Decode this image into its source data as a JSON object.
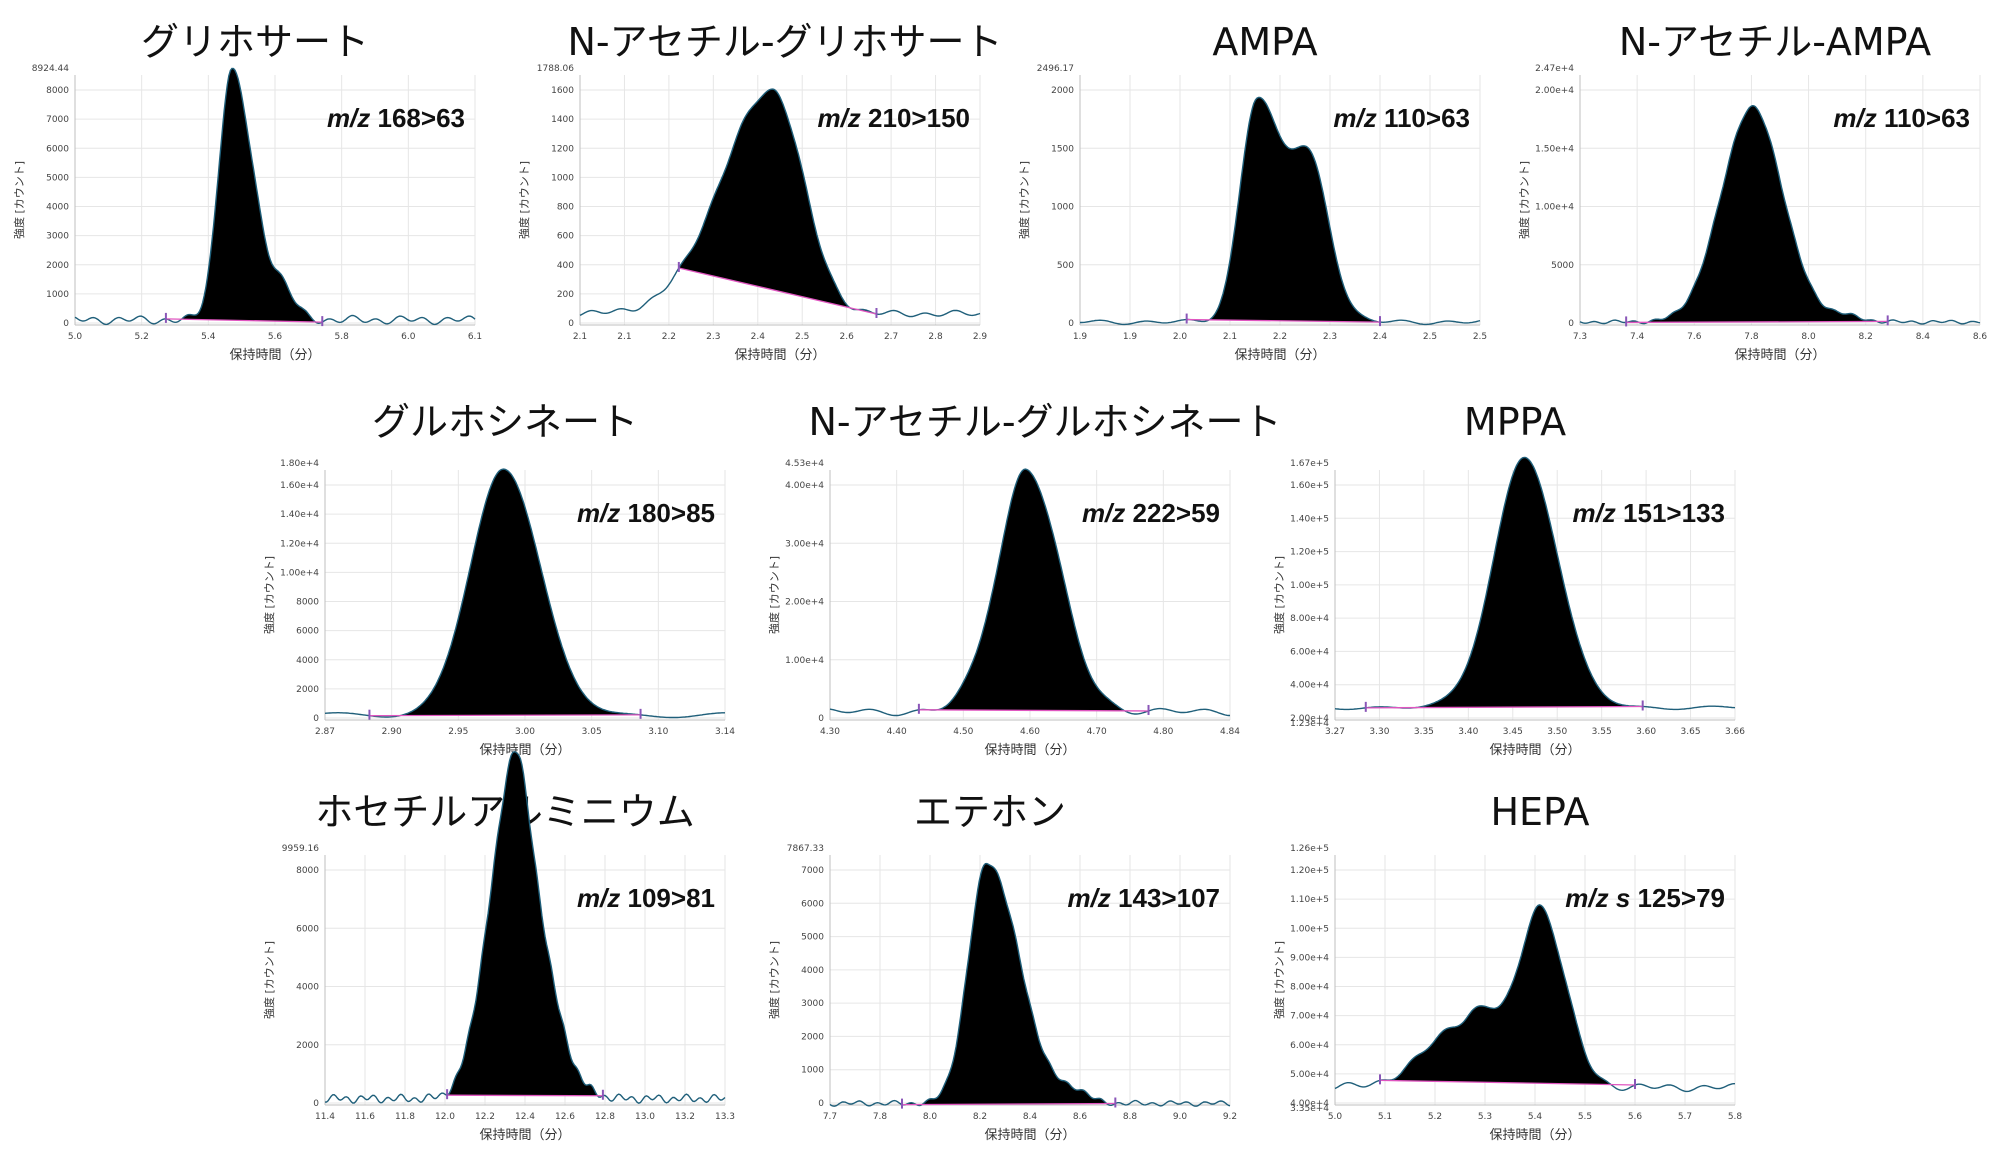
{
  "chart_data": [
    {
      "type": "area",
      "title": "グリホサート",
      "annotation_italic": "m/z",
      "annotation": "168>63",
      "xlabel": "保持時間（分）",
      "ylabel": "強度 [カウント]",
      "x_ticks": [
        "5.0",
        "5.2",
        "5.4",
        "5.6",
        "5.8",
        "6.0",
        "6.1"
      ],
      "y_ticks": [
        "0",
        "1000",
        "2000",
        "3000",
        "4000",
        "5000",
        "6000",
        "7000",
        "8000"
      ],
      "y_max_label": "8924.44",
      "xlim": [
        5.0,
        6.1
      ],
      "ylim": [
        0,
        8924.44
      ],
      "peak": {
        "start": 5.25,
        "end": 5.68,
        "components": [
          {
            "center": 5.43,
            "height": 8900,
            "sl": 0.035,
            "sr": 0.06
          },
          {
            "center": 5.57,
            "height": 900,
            "sl": 0.03,
            "sr": 0.035
          }
        ]
      },
      "baseline": {
        "level": 180,
        "noise": 160
      }
    },
    {
      "type": "area",
      "title": "N-アセチル-グリホサート",
      "annotation_italic": "m/z",
      "annotation": "210>150",
      "xlabel": "保持時間（分）",
      "ylabel": "強度 [カウント]",
      "x_ticks": [
        "2.1",
        "2.1",
        "2.2",
        "2.3",
        "2.4",
        "2.5",
        "2.6",
        "2.7",
        "2.8",
        "2.9"
      ],
      "y_ticks": [
        "0",
        "200",
        "400",
        "600",
        "800",
        "1000",
        "1200",
        "1400",
        "1600"
      ],
      "y_max_label": "1788.06",
      "xlim": [
        2.05,
        2.9
      ],
      "ylim": [
        0,
        1788.06
      ],
      "peak": {
        "start": 2.26,
        "end": 2.68,
        "components": [
          {
            "center": 2.46,
            "height": 1600,
            "sl": 0.11,
            "sr": 0.065
          }
        ]
      },
      "baseline": {
        "level": 80,
        "noise": 25
      }
    },
    {
      "type": "area",
      "title": "AMPA",
      "annotation_italic": "m/z",
      "annotation": "110>63",
      "xlabel": "保持時間（分）",
      "ylabel": "強度 [カウント]",
      "x_ticks": [
        "1.9",
        "1.9",
        "2.0",
        "2.1",
        "2.2",
        "2.3",
        "2.4",
        "2.5",
        "2.5"
      ],
      "y_ticks": [
        "0",
        "500",
        "1000",
        "1500",
        "2000"
      ],
      "y_max_label": "2496.17",
      "xlim": [
        1.9,
        2.5
      ],
      "ylim": [
        0,
        2496.17
      ],
      "peak": {
        "start": 2.06,
        "end": 2.35,
        "components": [
          {
            "center": 2.165,
            "height": 2200,
            "sl": 0.025,
            "sr": 0.035
          },
          {
            "center": 2.245,
            "height": 1550,
            "sl": 0.03,
            "sr": 0.03
          }
        ]
      },
      "baseline": {
        "level": 30,
        "noise": 25
      }
    },
    {
      "type": "area",
      "title": "N-アセチル-AMPA",
      "annotation_italic": "m/z",
      "annotation": "110>63",
      "xlabel": "保持時間（分）",
      "ylabel": "強度 [カウント]",
      "x_ticks": [
        "7.3",
        "7.4",
        "7.6",
        "7.8",
        "8.0",
        "8.2",
        "8.4",
        "8.6"
      ],
      "y_ticks": [
        "0",
        "5000",
        "1.00e+4",
        "1.50e+4",
        "2.00e+4"
      ],
      "y_max_label": "2.47e+4",
      "xlim": [
        7.3,
        8.6
      ],
      "ylim": [
        0,
        24700
      ],
      "peak": {
        "start": 7.45,
        "end": 8.3,
        "components": [
          {
            "center": 7.86,
            "height": 21200,
            "sl": 0.1,
            "sr": 0.1
          },
          {
            "center": 8.15,
            "height": 600,
            "sl": 0.05,
            "sr": 0.06
          }
        ]
      },
      "baseline": {
        "level": 300,
        "noise": 200
      }
    },
    {
      "type": "area",
      "title": "グルホシネート",
      "annotation_italic": "m/z",
      "annotation": "180>85",
      "xlabel": "保持時間（分）",
      "ylabel": "強度 [カウント]",
      "x_ticks": [
        "2.87",
        "2.90",
        "2.95",
        "3.00",
        "3.05",
        "3.10",
        "3.14"
      ],
      "y_ticks": [
        "0",
        "2000",
        "4000",
        "6000",
        "8000",
        "1.00e+4",
        "1.20e+4",
        "1.40e+4",
        "1.60e+4"
      ],
      "y_max_label": "1.80e+4",
      "xlim": [
        2.87,
        3.14
      ],
      "ylim": [
        0,
        18000
      ],
      "peak": {
        "start": 2.9,
        "end": 3.083,
        "components": [
          {
            "center": 2.99,
            "height": 17700,
            "sl": 0.022,
            "sr": 0.025
          }
        ]
      },
      "baseline": {
        "level": 350,
        "noise": 200
      }
    },
    {
      "type": "area",
      "title": "N-アセチル-グルホシネート",
      "annotation_italic": "m/z",
      "annotation": "222>59",
      "xlabel": "保持時間（分）",
      "ylabel": "強度 [カウント]",
      "x_ticks": [
        "4.30",
        "4.40",
        "4.50",
        "4.60",
        "4.70",
        "4.80",
        "4.84"
      ],
      "y_ticks": [
        "0",
        "1.00e+4",
        "2.00e+4",
        "3.00e+4",
        "4.00e+4"
      ],
      "y_max_label": "4.53e+4",
      "xlim": [
        4.3,
        4.84
      ],
      "ylim": [
        0,
        45300
      ],
      "peak": {
        "start": 4.42,
        "end": 4.73,
        "components": [
          {
            "center": 4.565,
            "height": 44000,
            "sl": 0.035,
            "sr": 0.045
          },
          {
            "center": 4.51,
            "height": 4000,
            "sl": 0.03,
            "sr": 0.02
          }
        ]
      },
      "baseline": {
        "level": 1500,
        "noise": 700
      }
    },
    {
      "type": "area",
      "title": "MPPA",
      "annotation_italic": "m/z",
      "annotation": "151>133",
      "xlabel": "保持時間（分）",
      "ylabel": "強度 [カウント]",
      "x_ticks": [
        "3.27",
        "3.30",
        "3.35",
        "3.40",
        "3.45",
        "3.50",
        "3.55",
        "3.60",
        "3.65",
        "3.66"
      ],
      "y_ticks": [
        "2.00e+4",
        "4.00e+4",
        "6.00e+4",
        "8.00e+4",
        "1.00e+5",
        "1.20e+5",
        "1.40e+5",
        "1.60e+5"
      ],
      "y_max_label": "1.67e+5",
      "y_min_label": "1.23e+4",
      "xlim": [
        3.27,
        3.66
      ],
      "ylim": [
        12300,
        167000
      ],
      "peak": {
        "start": 3.3,
        "end": 3.57,
        "components": [
          {
            "center": 3.455,
            "height": 155000,
            "sl": 0.03,
            "sr": 0.032
          }
        ]
      },
      "baseline": {
        "level": 20000,
        "noise": 1200
      }
    },
    {
      "type": "area",
      "title": "ホセチルアルミニウム",
      "annotation_italic": "m/z",
      "annotation": "109>81",
      "xlabel": "保持時間（分）",
      "ylabel": "強度 [カウント]",
      "x_ticks": [
        "11.4",
        "11.6",
        "11.8",
        "12.0",
        "12.2",
        "12.4",
        "12.6",
        "12.8",
        "13.0",
        "13.2",
        "13.3"
      ],
      "y_ticks": [
        "0",
        "2000",
        "4000",
        "6000",
        "8000"
      ],
      "y_max_label": "9959.16",
      "xlim": [
        11.4,
        13.3
      ],
      "ylim": [
        0,
        9959.16
      ],
      "peak": {
        "start": 11.98,
        "end": 12.72,
        "components": [
          {
            "center": 12.24,
            "height": 8600,
            "sl": 0.1,
            "sr": 0.09
          },
          {
            "center": 12.34,
            "height": 8300,
            "sl": 0.07,
            "sr": 0.13
          }
        ]
      },
      "baseline": {
        "level": 250,
        "noise": 180
      }
    },
    {
      "type": "area",
      "title": "エテホン",
      "annotation_italic": "m/z",
      "annotation": "143>107",
      "xlabel": "保持時間（分）",
      "ylabel": "強度 [カウント]",
      "x_ticks": [
        "7.7",
        "7.8",
        "8.0",
        "8.2",
        "8.4",
        "8.6",
        "8.8",
        "9.0",
        "9.2"
      ],
      "y_ticks": [
        "0",
        "1000",
        "2000",
        "3000",
        "4000",
        "5000",
        "6000",
        "7000"
      ],
      "y_max_label": "7867.33",
      "xlim": [
        7.7,
        9.2
      ],
      "ylim": [
        0,
        7867.33
      ],
      "peak": {
        "start": 7.97,
        "end": 8.77,
        "components": [
          {
            "center": 8.29,
            "height": 7600,
            "sl": 0.07,
            "sr": 0.12
          },
          {
            "center": 8.62,
            "height": 350,
            "sl": 0.05,
            "sr": 0.05
          }
        ]
      },
      "baseline": {
        "level": 50,
        "noise": 90
      }
    },
    {
      "type": "area",
      "title": "HEPA",
      "annotation_italic": "m/z s",
      "annotation": "125>79",
      "xlabel": "保持時間（分）",
      "ylabel": "強度 [カウント]",
      "x_ticks": [
        "5.0",
        "5.1",
        "5.2",
        "5.3",
        "5.4",
        "5.5",
        "5.6",
        "5.7",
        "5.8"
      ],
      "y_ticks": [
        "4.00e+4",
        "5.00e+4",
        "6.00e+4",
        "7.00e+4",
        "8.00e+4",
        "9.00e+4",
        "1.00e+5",
        "1.10e+5",
        "1.20e+5"
      ],
      "y_max_label": "1.26e+5",
      "y_min_label": "3.35e+4",
      "xlim": [
        5.0,
        5.8
      ],
      "ylim": [
        33500,
        126000
      ],
      "peak": {
        "start": 5.09,
        "end": 5.6,
        "components": [
          {
            "center": 5.41,
            "height": 66000,
            "sl": 0.04,
            "sr": 0.05
          },
          {
            "center": 5.265,
            "height": 24000,
            "sl": 0.08,
            "sr": 0.04
          },
          {
            "center": 5.32,
            "height": 15000,
            "sl": 0.03,
            "sr": 0.04
          }
        ]
      },
      "baseline": {
        "level": 40000,
        "noise": 1500
      }
    }
  ],
  "colors": {
    "fill": "#000000",
    "trace": "#1f5f7a",
    "baseline": "#e055c0",
    "marker": "#8a56b8"
  }
}
